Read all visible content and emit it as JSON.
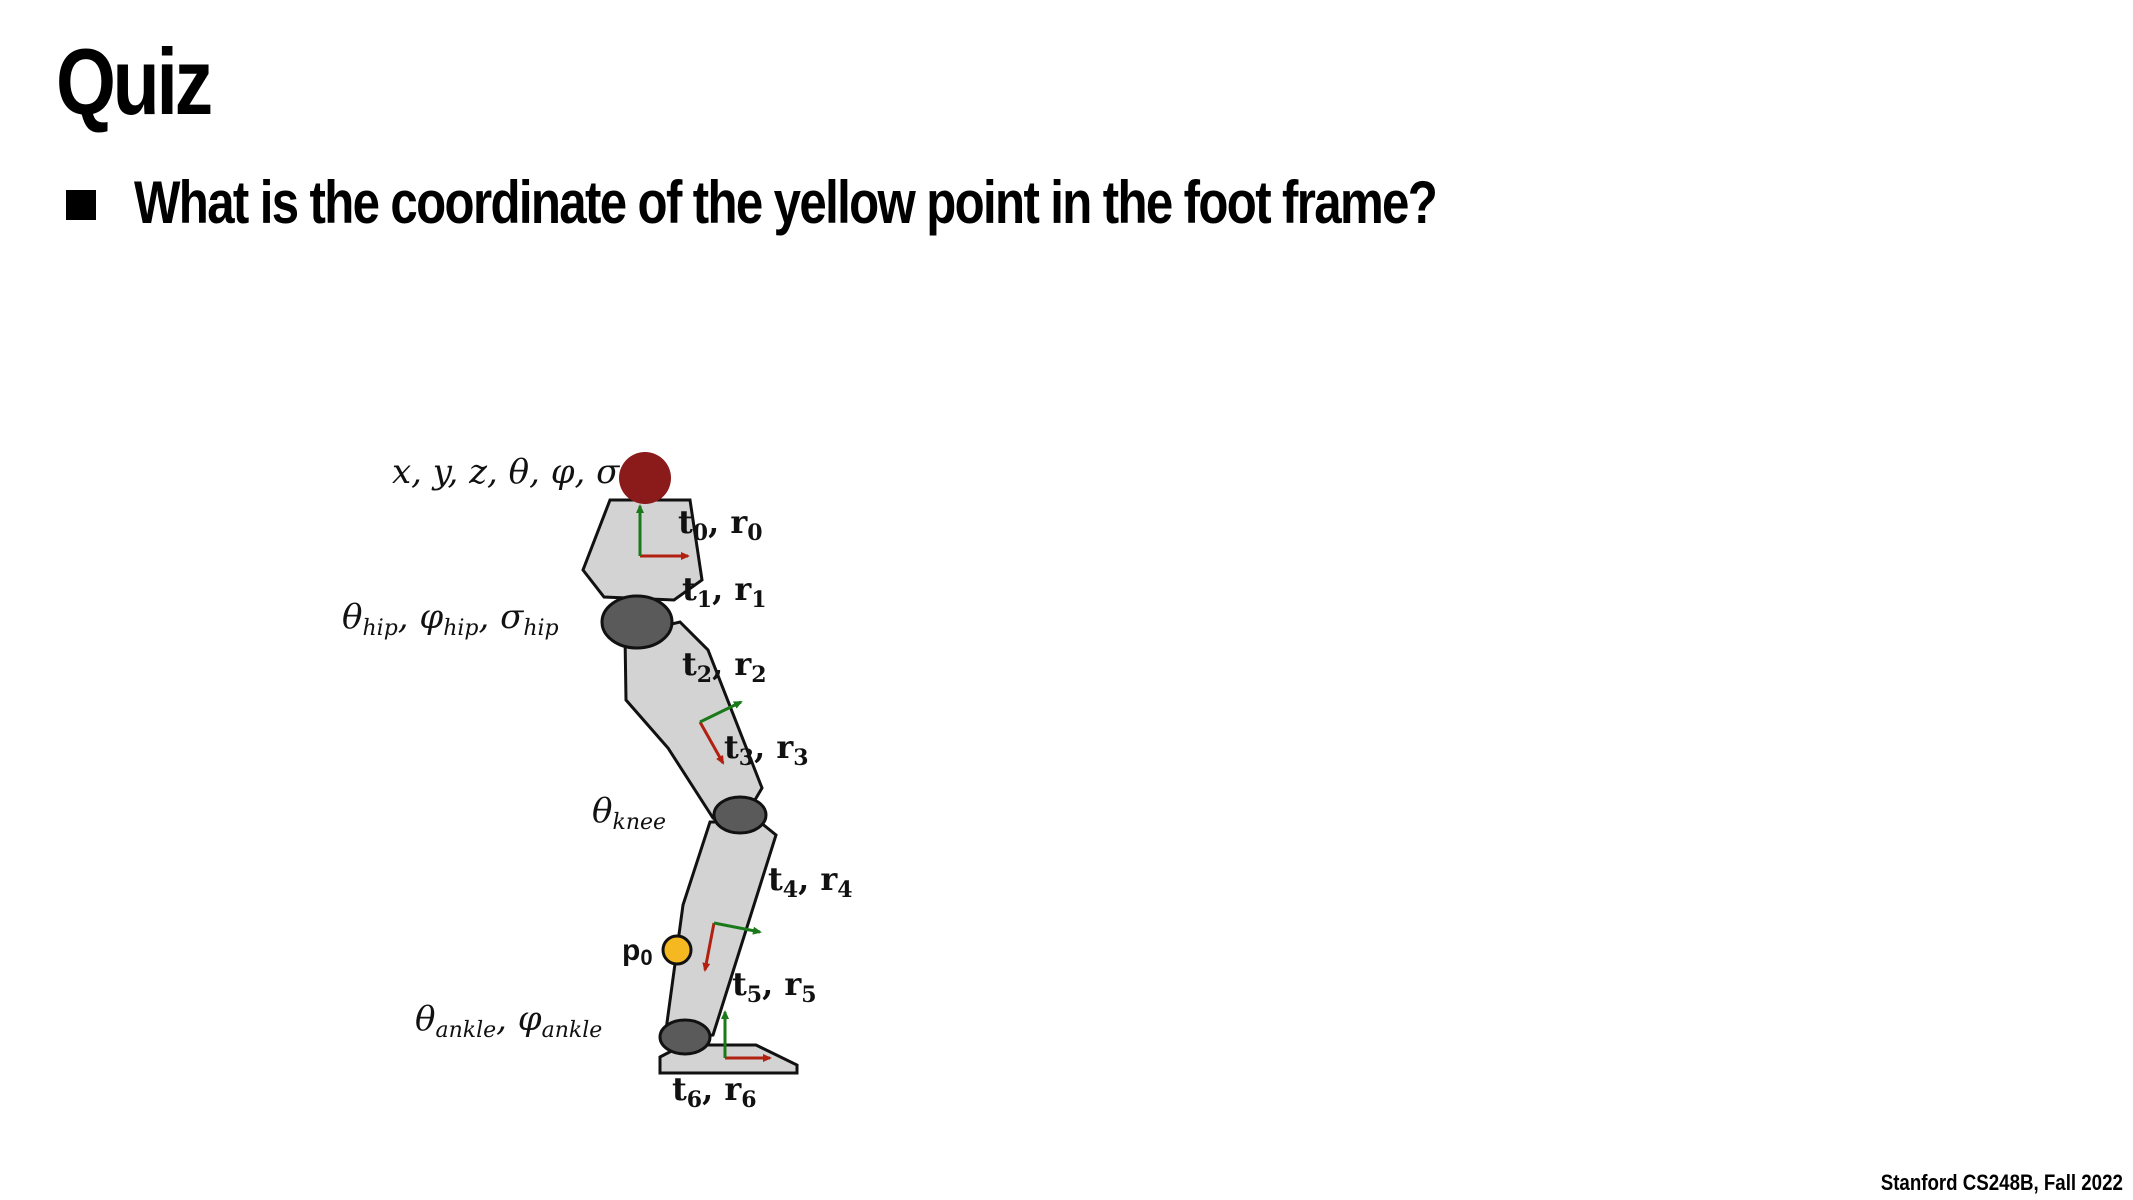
{
  "slide": {
    "title": "Quiz",
    "bullet": "What is the coordinate of the yellow point in the foot frame?",
    "footer": "Stanford CS248B, Fall 2022"
  },
  "diagram": {
    "root_label": "x, y, z, θ, φ, σ",
    "hip_label": {
      "a": "θ",
      "a_sub": "hip",
      "b": ", φ",
      "b_sub": "hip",
      "c": ", σ",
      "c_sub": "hip"
    },
    "knee_label": {
      "a": "θ",
      "a_sub": "knee"
    },
    "ankle_label": {
      "a": "θ",
      "a_sub": "ankle",
      "b": ", φ",
      "b_sub": "ankle"
    },
    "frames": [
      {
        "t": "t",
        "t_sub": "0",
        "r": ", r",
        "r_sub": "0"
      },
      {
        "t": "t",
        "t_sub": "1",
        "r": ", r",
        "r_sub": "1"
      },
      {
        "t": "t",
        "t_sub": "2",
        "r": ", r",
        "r_sub": "2"
      },
      {
        "t": "t",
        "t_sub": "3",
        "r": ", r",
        "r_sub": "3"
      },
      {
        "t": "t",
        "t_sub": "4",
        "r": ", r",
        "r_sub": "4"
      },
      {
        "t": "t",
        "t_sub": "5",
        "r": ", r",
        "r_sub": "5"
      },
      {
        "t": "t",
        "t_sub": "6",
        "r": ", r",
        "r_sub": "6"
      }
    ],
    "point_label": {
      "p": "p",
      "p_sub": "0"
    },
    "colors": {
      "segment_fill": "#d3d3d3",
      "joint_fill": "#5a5a5a",
      "root_ball": "#8b1a1a",
      "point_fill": "#f5b820",
      "axis_x": "#b22010",
      "axis_y": "#1a7a1a"
    }
  }
}
